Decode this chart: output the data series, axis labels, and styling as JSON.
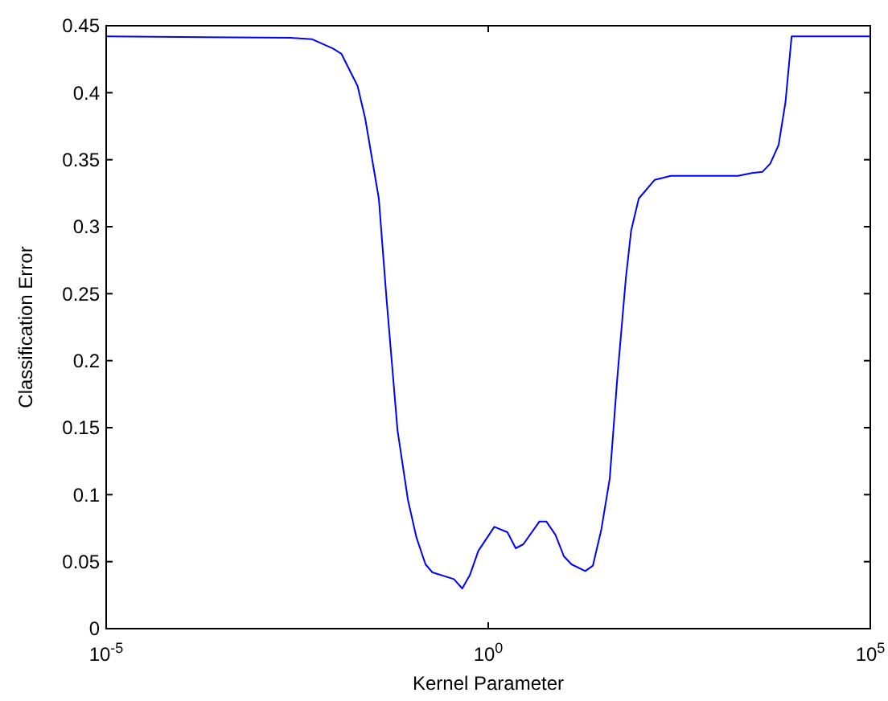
{
  "chart_data": {
    "type": "line",
    "xlabel": "Kernel Parameter",
    "ylabel": "Classification Error",
    "log": "x",
    "grid": false,
    "marker": "none",
    "line_style": "solid",
    "xlim": [
      1e-05,
      100000
    ],
    "xticks": [
      {
        "value": 1e-05,
        "label": "10$^{-5}$"
      },
      {
        "value": 1,
        "label": "10$^{0}$"
      },
      {
        "value": 100000,
        "label": "10$^{5}$"
      }
    ],
    "ylim": [
      0,
      0.45
    ],
    "yticks": [
      0,
      0.05,
      0.1,
      0.15,
      0.2,
      0.25,
      0.3,
      0.35,
      0.4,
      0.45
    ],
    "series": [
      {
        "color": "#0000ff",
        "x": [
          1e-05,
          0.00257,
          0.0049,
          0.0093,
          0.012,
          0.0195,
          0.0245,
          0.037,
          0.047,
          0.065,
          0.089,
          0.115,
          0.151,
          0.186,
          0.355,
          0.457,
          0.575,
          0.741,
          1.2,
          1.78,
          2.29,
          2.88,
          4.68,
          5.75,
          7.59,
          9.77,
          12.3,
          18.6,
          23.4,
          30.2,
          38.9,
          49,
          63.1,
          74.1,
          93.3,
          151,
          245,
          1862,
          2818,
          3890,
          4898,
          6310,
          7762,
          9333,
          100000
        ],
        "values": [
          0.442,
          0.441,
          0.44,
          0.433,
          0.429,
          0.405,
          0.381,
          0.321,
          0.244,
          0.148,
          0.096,
          0.068,
          0.048,
          0.042,
          0.037,
          0.03,
          0.04,
          0.058,
          0.076,
          0.072,
          0.06,
          0.063,
          0.08,
          0.08,
          0.07,
          0.054,
          0.048,
          0.043,
          0.047,
          0.074,
          0.112,
          0.188,
          0.261,
          0.297,
          0.321,
          0.335,
          0.338,
          0.338,
          0.34,
          0.341,
          0.347,
          0.361,
          0.393,
          0.442,
          0.442
        ]
      }
    ]
  }
}
